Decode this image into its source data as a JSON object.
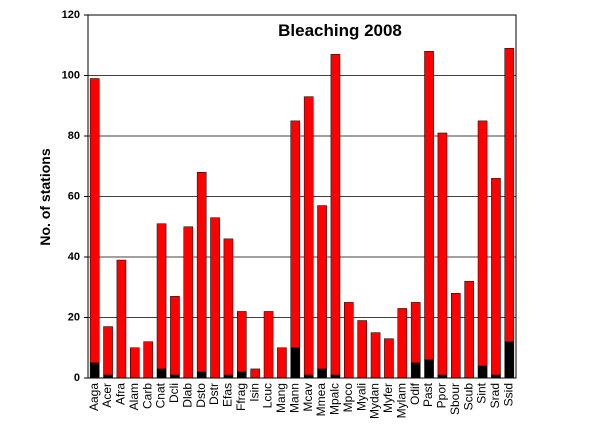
{
  "chart_data": {
    "type": "stacked_bar",
    "title": "Bleaching 2008",
    "ylabel": "No. of stations",
    "categories": [
      "Aaga",
      "Acer",
      "Afra",
      "Alam",
      "Carb",
      "Cnat",
      "Dcli",
      "Dlab",
      "Dsto",
      "Dstr",
      "Efas",
      "Ffrag",
      "Isin",
      "Lcuc",
      "Mang",
      "Mann",
      "Mcav",
      "Mmea",
      "Mpalc",
      "Mpco",
      "Myali",
      "Mydan",
      "Myfer",
      "Mylam",
      "Odif",
      "Past",
      "Ppor",
      "Sbour",
      "Scub",
      "Sint",
      "Srad",
      "Ssid"
    ],
    "series": [
      {
        "color": "#000000",
        "values": [
          5,
          1,
          0,
          0,
          0,
          3,
          1,
          0,
          2,
          0,
          1,
          2,
          0,
          0,
          0,
          10,
          1,
          3,
          1,
          0,
          0,
          0,
          0,
          0,
          5,
          6,
          1,
          0,
          0,
          4,
          1,
          12
        ]
      },
      {
        "color": "#ff0000",
        "values": [
          94,
          16,
          39,
          10,
          12,
          48,
          26,
          50,
          66,
          53,
          45,
          20,
          3,
          22,
          10,
          75,
          92,
          54,
          106,
          25,
          19,
          15,
          13,
          23,
          20,
          102,
          80,
          28,
          32,
          81,
          65,
          97
        ]
      }
    ],
    "ylim": [
      0,
      120
    ],
    "yticks": [
      0,
      20,
      40,
      60,
      80,
      100,
      120
    ],
    "grid": true
  }
}
